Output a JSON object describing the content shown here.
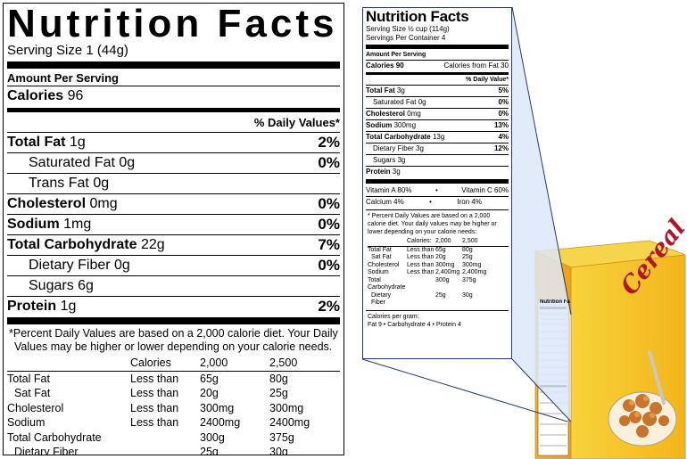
{
  "big_label": {
    "title": "Nutrition Facts",
    "serving": "Serving Size 1  (44g)",
    "amount_per_serving": "Amount Per Serving",
    "calories_label": "Calories",
    "calories_value": "96",
    "daily_values_header": "% Daily Values*",
    "nutrients": [
      {
        "label": "Total Fat",
        "amount": "1g",
        "pct": "2%"
      },
      {
        "label": "Saturated Fat",
        "amount": "0g",
        "pct": "0%"
      },
      {
        "label": "Trans Fat",
        "amount": "0g",
        "pct": ""
      },
      {
        "label": "Cholesterol",
        "amount": "0mg",
        "pct": "0%"
      },
      {
        "label": "Sodium",
        "amount": "1mg",
        "pct": "0%"
      },
      {
        "label": "Total Carbohydrate",
        "amount": "22g",
        "pct": "7%"
      },
      {
        "label": "Dietary Fiber",
        "amount": "0g",
        "pct": "0%"
      },
      {
        "label": "Sugars",
        "amount": "6g",
        "pct": ""
      },
      {
        "label": "Protein",
        "amount": "1g",
        "pct": "2%"
      }
    ],
    "footnote_line1": "*Percent Daily Values are based on a 2,000 calorie diet. Your Daily",
    "footnote_line2": "Values may be higher or lower depending on your calorie needs.",
    "table_header": [
      "",
      "Calories",
      "2,000",
      "2,500"
    ],
    "table_rows": [
      [
        "Total Fat",
        "Less than",
        "65g",
        "80g"
      ],
      [
        "Sat Fat",
        "Less than",
        "20g",
        "25g"
      ],
      [
        "Cholesterol",
        "Less than",
        "300mg",
        "300mg"
      ],
      [
        "Sodium",
        "Less than",
        "2400mg",
        "2400mg"
      ],
      [
        "Total Carbohydrate",
        "",
        "300g",
        "375g"
      ],
      [
        "Dietary Fiber",
        "",
        "25g",
        "30g"
      ]
    ]
  },
  "small_label": {
    "title": "Nutrition Facts",
    "serving_size": "Serving Size ½ cup (114g)",
    "servings_per_container": "Servings Per Container 4",
    "amount_per_serving": "Amount Per Serving",
    "calories": "Calories 90",
    "calories_from_fat": "Calories from Fat 30",
    "daily_value_header": "% Daily Value*",
    "nutrients": [
      {
        "label": "Total Fat",
        "amount": "3g",
        "pct": "5%"
      },
      {
        "label": "Saturated Fat",
        "amount": "0g",
        "pct": "0%"
      },
      {
        "label": "Cholesterol",
        "amount": "0mg",
        "pct": "0%"
      },
      {
        "label": "Sodium",
        "amount": "300mg",
        "pct": "13%"
      },
      {
        "label": "Total Carbohydrate",
        "amount": "13g",
        "pct": "4%"
      },
      {
        "label": "Dietary Fiber",
        "amount": "3g",
        "pct": "12%"
      },
      {
        "label": "Sugars",
        "amount": "3g",
        "pct": ""
      },
      {
        "label": "Protein",
        "amount": "3g",
        "pct": ""
      }
    ],
    "vitamin_a": "Vitamin A 80%",
    "vitamin_c": "Vitamin C 60%",
    "calcium": "Calcium 4%",
    "iron": "Iron 4%",
    "bullet": "•",
    "footnote": "* Percent Daily Values are based on a 2,000 calorie diet. Your daily values may be higher or lower depending on your calorie needs:",
    "table_header": [
      "",
      "Calories:",
      "2,000",
      "2,500"
    ],
    "table_rows": [
      [
        "Total Fat",
        "Less than",
        "65g",
        "80g"
      ],
      [
        "Sat Fat",
        "Less than",
        "20g",
        "25g"
      ],
      [
        "Cholesterol",
        "Less than",
        "300mg",
        "300mg"
      ],
      [
        "Sodium",
        "Less than",
        "2,400mg",
        "2,400mg"
      ],
      [
        "Total Carbohydrate",
        "",
        "300g",
        "375g"
      ],
      [
        "Dietary Fiber",
        "",
        "25g",
        "30g"
      ]
    ],
    "calories_per_gram_label": "Calories per gram:",
    "calories_per_gram": "Fat 9  •  Carbohydrate 4  •  Protein 4"
  },
  "cereal_box": {
    "brand": "Cereal",
    "panel_title": "Nutrition Facts",
    "colors": {
      "box_front": "#f5c21c",
      "box_side": "#f1a81a",
      "brand_text": "#b3142b",
      "callout": "#dde8f8"
    }
  }
}
